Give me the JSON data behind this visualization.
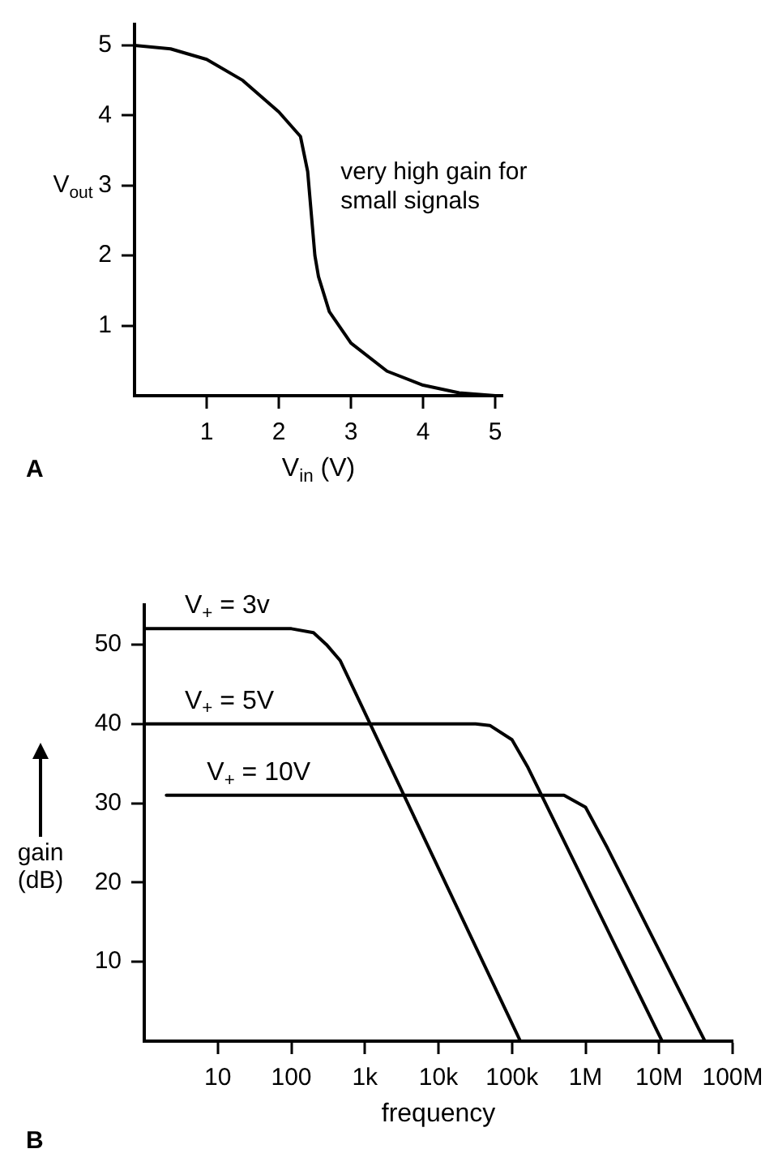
{
  "chart_data": [
    {
      "type": "line",
      "xlabel": "V$_{in}$ (V)",
      "ylabel": "V$_{out}$",
      "xlim": [
        0,
        5.1
      ],
      "ylim": [
        0,
        5.3
      ],
      "xticks": [
        1,
        2,
        3,
        4,
        5
      ],
      "yticks": [
        1,
        2,
        3,
        4,
        5
      ],
      "grid": false,
      "legend": false,
      "marker": "none",
      "line_style": "solid",
      "series": [
        {
          "color": "#000000",
          "x": [
            0,
            0.5,
            1,
            1.5,
            2,
            2.3,
            2.4,
            2.45,
            2.5,
            2.55,
            2.7,
            3,
            3.5,
            4,
            4.5,
            5
          ],
          "values": [
            5,
            4.95,
            4.8,
            4.5,
            4.05,
            3.7,
            3.2,
            2.6,
            2.0,
            1.7,
            1.2,
            0.75,
            0.35,
            0.15,
            0.04,
            0
          ]
        }
      ],
      "annotations": [
        "very high gain for small signals",
        "A"
      ]
    },
    {
      "type": "line",
      "xlabel": "frequency",
      "ylabel": "gain (dB)",
      "log": "x",
      "xlim": [
        1,
        100000000
      ],
      "ylim": [
        0,
        55
      ],
      "xticks": [
        10,
        100,
        {
          "value": 1000,
          "label": "1k"
        },
        {
          "value": 10000,
          "label": "10k"
        },
        {
          "value": 100000,
          "label": "100k"
        },
        {
          "value": 1000000,
          "label": "1M"
        },
        {
          "value": 10000000,
          "label": "10M"
        },
        {
          "value": 100000000,
          "label": "100M"
        }
      ],
      "yticks": [
        10,
        20,
        30,
        40,
        50
      ],
      "grid": false,
      "legend": false,
      "marker": "none",
      "line_style": "solid",
      "series": [
        {
          "name": "V$_{+}$ = 3v",
          "color": "#000000",
          "x": [
            1,
            100,
            200,
            300,
            460,
            130000
          ],
          "values": [
            52,
            52,
            51.5,
            50,
            48,
            0
          ]
        },
        {
          "name": "V$_{+}$ = 5V",
          "color": "#000000",
          "x": [
            1,
            32000,
            50000,
            100000,
            165000,
            11000000
          ],
          "values": [
            40,
            40,
            39.8,
            38,
            34.5,
            0
          ]
        },
        {
          "name": "V$_{+}$ = 10V",
          "color": "#000000",
          "x": [
            2,
            510000,
            1000000,
            2000000,
            42000000
          ],
          "values": [
            31,
            31,
            29.5,
            24.3,
            0
          ]
        }
      ],
      "annotations": [
        "B"
      ]
    }
  ]
}
